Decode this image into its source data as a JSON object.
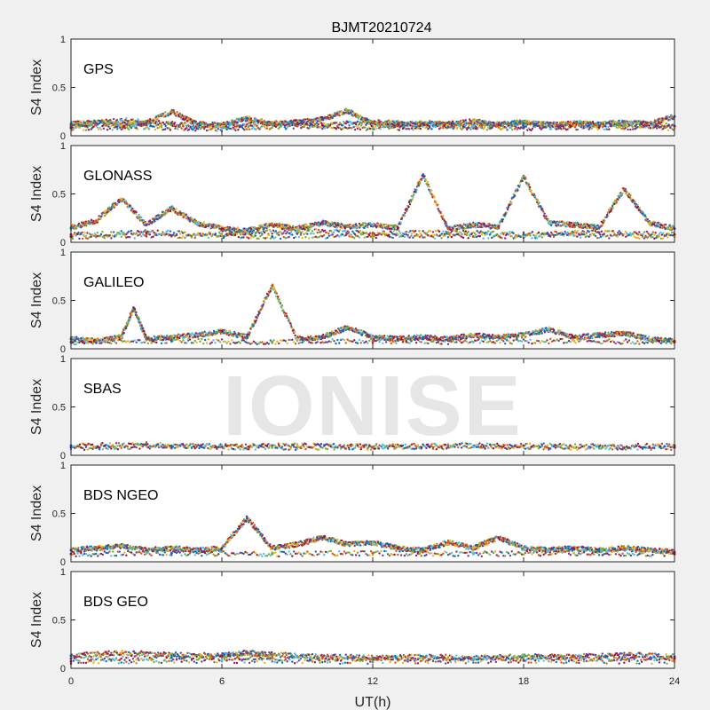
{
  "title": "BJMT20210724",
  "xlabel": "UT(h)",
  "ylabel": "S4 Index",
  "watermark": "IONISE",
  "xticks": [
    "0",
    "6",
    "12",
    "18",
    "24"
  ],
  "yticks": [
    "0",
    "0.5",
    "1"
  ],
  "colors": [
    "#0072BD",
    "#D95319",
    "#EDB120",
    "#7E2F8E",
    "#77AC30",
    "#4DBEEE",
    "#A2142F"
  ],
  "chart_data": [
    {
      "type": "scatter",
      "name": "GPS",
      "xlim": [
        0,
        24
      ],
      "ylim": [
        0,
        1
      ],
      "series": [
        {
          "points": [
            [
              0,
              0.12
            ],
            [
              1,
              0.14
            ],
            [
              2,
              0.11
            ],
            [
              3,
              0.13
            ],
            [
              4,
              0.25
            ],
            [
              5,
              0.12
            ],
            [
              6,
              0.11
            ],
            [
              7,
              0.18
            ],
            [
              8,
              0.12
            ],
            [
              9,
              0.14
            ],
            [
              10,
              0.17
            ],
            [
              11,
              0.26
            ],
            [
              12,
              0.12
            ],
            [
              13,
              0.11
            ],
            [
              14,
              0.13
            ],
            [
              15,
              0.12
            ],
            [
              16,
              0.15
            ],
            [
              17,
              0.12
            ],
            [
              18,
              0.14
            ],
            [
              19,
              0.11
            ],
            [
              20,
              0.13
            ],
            [
              21,
              0.12
            ],
            [
              22,
              0.14
            ],
            [
              23,
              0.12
            ],
            [
              24,
              0.2
            ]
          ]
        },
        {
          "points": [
            [
              0,
              0.1
            ],
            [
              2,
              0.16
            ],
            [
              4,
              0.12
            ],
            [
              6,
              0.1
            ],
            [
              8,
              0.13
            ],
            [
              10,
              0.11
            ],
            [
              12,
              0.14
            ],
            [
              14,
              0.12
            ],
            [
              16,
              0.1
            ],
            [
              18,
              0.13
            ],
            [
              20,
              0.11
            ],
            [
              22,
              0.12
            ],
            [
              24,
              0.1
            ]
          ]
        },
        {
          "points": [
            [
              0,
              0.08
            ],
            [
              3,
              0.09
            ],
            [
              6,
              0.07
            ],
            [
              9,
              0.1
            ],
            [
              12,
              0.08
            ],
            [
              15,
              0.09
            ],
            [
              18,
              0.08
            ],
            [
              21,
              0.09
            ],
            [
              24,
              0.08
            ]
          ]
        }
      ]
    },
    {
      "type": "scatter",
      "name": "GLONASS",
      "xlim": [
        0,
        24
      ],
      "ylim": [
        0,
        1
      ],
      "series": [
        {
          "points": [
            [
              0,
              0.15
            ],
            [
              1,
              0.22
            ],
            [
              2,
              0.45
            ],
            [
              3,
              0.18
            ],
            [
              4,
              0.35
            ],
            [
              5,
              0.2
            ],
            [
              6,
              0.14
            ],
            [
              7,
              0.12
            ],
            [
              8,
              0.18
            ],
            [
              9,
              0.14
            ],
            [
              10,
              0.2
            ],
            [
              11,
              0.16
            ],
            [
              12,
              0.18
            ],
            [
              13,
              0.15
            ],
            [
              14,
              0.7
            ],
            [
              15,
              0.14
            ],
            [
              16,
              0.18
            ],
            [
              17,
              0.16
            ],
            [
              18,
              0.68
            ],
            [
              19,
              0.2
            ],
            [
              20,
              0.18
            ],
            [
              21,
              0.15
            ],
            [
              22,
              0.55
            ],
            [
              23,
              0.2
            ],
            [
              24,
              0.14
            ]
          ]
        },
        {
          "points": [
            [
              0,
              0.08
            ],
            [
              3,
              0.1
            ],
            [
              6,
              0.08
            ],
            [
              9,
              0.12
            ],
            [
              12,
              0.09
            ],
            [
              15,
              0.1
            ],
            [
              18,
              0.08
            ],
            [
              21,
              0.1
            ],
            [
              24,
              0.08
            ]
          ]
        },
        {
          "points": [
            [
              0,
              0.06
            ],
            [
              4,
              0.07
            ],
            [
              8,
              0.06
            ],
            [
              12,
              0.07
            ],
            [
              16,
              0.06
            ],
            [
              20,
              0.07
            ],
            [
              24,
              0.06
            ]
          ]
        }
      ]
    },
    {
      "type": "scatter",
      "name": "GALILEO",
      "xlim": [
        0,
        24
      ],
      "ylim": [
        0,
        1
      ],
      "series": [
        {
          "points": [
            [
              0,
              0.1
            ],
            [
              1,
              0.08
            ],
            [
              2,
              0.12
            ],
            [
              2.5,
              0.42
            ],
            [
              3,
              0.1
            ],
            [
              4,
              0.12
            ],
            [
              5,
              0.14
            ],
            [
              6,
              0.18
            ],
            [
              7,
              0.12
            ],
            [
              8,
              0.65
            ],
            [
              9,
              0.1
            ],
            [
              10,
              0.12
            ],
            [
              11,
              0.22
            ],
            [
              12,
              0.12
            ],
            [
              13,
              0.1
            ],
            [
              14,
              0.12
            ],
            [
              15,
              0.1
            ],
            [
              16,
              0.14
            ],
            [
              17,
              0.12
            ],
            [
              18,
              0.14
            ],
            [
              19,
              0.2
            ],
            [
              20,
              0.12
            ],
            [
              21,
              0.14
            ],
            [
              22,
              0.16
            ],
            [
              23,
              0.1
            ],
            [
              24,
              0.08
            ]
          ]
        },
        {
          "points": [
            [
              0,
              0.07
            ],
            [
              4,
              0.08
            ],
            [
              8,
              0.07
            ],
            [
              12,
              0.08
            ],
            [
              16,
              0.07
            ],
            [
              20,
              0.08
            ],
            [
              24,
              0.07
            ]
          ]
        }
      ]
    },
    {
      "type": "scatter",
      "name": "SBAS",
      "xlim": [
        0,
        24
      ],
      "ylim": [
        0,
        1
      ],
      "series": [
        {
          "points": [
            [
              0,
              0.1
            ],
            [
              3,
              0.11
            ],
            [
              6,
              0.09
            ],
            [
              9,
              0.1
            ],
            [
              12,
              0.09
            ],
            [
              15,
              0.1
            ],
            [
              18,
              0.1
            ],
            [
              21,
              0.09
            ],
            [
              24,
              0.1
            ]
          ]
        },
        {
          "points": [
            [
              0,
              0.08
            ],
            [
              4,
              0.09
            ],
            [
              8,
              0.08
            ],
            [
              12,
              0.08
            ],
            [
              16,
              0.09
            ],
            [
              20,
              0.08
            ],
            [
              24,
              0.08
            ]
          ]
        }
      ]
    },
    {
      "type": "scatter",
      "name": "BDS NGEO",
      "xlim": [
        0,
        24
      ],
      "ylim": [
        0,
        1
      ],
      "series": [
        {
          "points": [
            [
              0,
              0.12
            ],
            [
              1,
              0.14
            ],
            [
              2,
              0.16
            ],
            [
              3,
              0.12
            ],
            [
              4,
              0.14
            ],
            [
              5,
              0.12
            ],
            [
              6,
              0.14
            ],
            [
              7,
              0.45
            ],
            [
              8,
              0.14
            ],
            [
              9,
              0.18
            ],
            [
              10,
              0.25
            ],
            [
              11,
              0.18
            ],
            [
              12,
              0.2
            ],
            [
              13,
              0.14
            ],
            [
              14,
              0.12
            ],
            [
              15,
              0.2
            ],
            [
              16,
              0.14
            ],
            [
              17,
              0.25
            ],
            [
              18,
              0.14
            ],
            [
              19,
              0.12
            ],
            [
              20,
              0.14
            ],
            [
              21,
              0.12
            ],
            [
              22,
              0.14
            ],
            [
              23,
              0.12
            ],
            [
              24,
              0.1
            ]
          ]
        },
        {
          "points": [
            [
              0,
              0.08
            ],
            [
              4,
              0.09
            ],
            [
              8,
              0.08
            ],
            [
              12,
              0.09
            ],
            [
              16,
              0.08
            ],
            [
              20,
              0.09
            ],
            [
              24,
              0.08
            ]
          ]
        }
      ]
    },
    {
      "type": "scatter",
      "name": "BDS GEO",
      "xlim": [
        0,
        24
      ],
      "ylim": [
        0,
        1
      ],
      "series": [
        {
          "points": [
            [
              0,
              0.13
            ],
            [
              2,
              0.16
            ],
            [
              4,
              0.14
            ],
            [
              6,
              0.13
            ],
            [
              7,
              0.16
            ],
            [
              8,
              0.14
            ],
            [
              10,
              0.12
            ],
            [
              12,
              0.11
            ],
            [
              14,
              0.12
            ],
            [
              16,
              0.11
            ],
            [
              18,
              0.12
            ],
            [
              20,
              0.12
            ],
            [
              22,
              0.14
            ],
            [
              24,
              0.12
            ]
          ]
        },
        {
          "points": [
            [
              0,
              0.1
            ],
            [
              4,
              0.11
            ],
            [
              8,
              0.1
            ],
            [
              12,
              0.1
            ],
            [
              16,
              0.1
            ],
            [
              20,
              0.1
            ],
            [
              24,
              0.1
            ]
          ]
        },
        {
          "points": [
            [
              0,
              0.07
            ],
            [
              6,
              0.08
            ],
            [
              12,
              0.07
            ],
            [
              18,
              0.08
            ],
            [
              24,
              0.07
            ]
          ]
        }
      ]
    }
  ]
}
